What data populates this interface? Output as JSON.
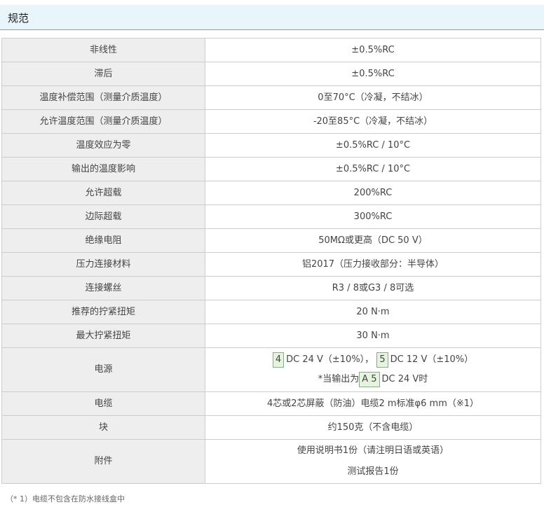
{
  "title": "规范",
  "rows": [
    {
      "label": "非线性",
      "value": "±0.5%RC"
    },
    {
      "label": "滞后",
      "value": "±0.5%RC"
    },
    {
      "label": "温度补偿范围（测量介质温度）",
      "value": "0至70°C（冷凝，不结冰）"
    },
    {
      "label": "允许温度范围（测量介质温度）",
      "value": "-20至85°C（冷凝，不结冰）"
    },
    {
      "label": "温度效应为零",
      "value": "±0.5%RC / 10°C"
    },
    {
      "label": "输出的温度影响",
      "value": "±0.5%RC / 10°C"
    },
    {
      "label": "允许超载",
      "value": "200%RC"
    },
    {
      "label": "边际超载",
      "value": "300%RC"
    },
    {
      "label": "绝缘电阻",
      "value": "50MΩ或更高（DC 50 V）"
    },
    {
      "label": "压力连接材料",
      "value": "铝2017（压力接收部分：半导体）"
    },
    {
      "label": "连接螺丝",
      "value": "R3 / 8或G3 / 8可选"
    },
    {
      "label": "推荐的拧紧扭矩",
      "value": "20 N·m"
    },
    {
      "label": "最大拧紧扭矩",
      "value": "30 N·m"
    }
  ],
  "power": {
    "label": "电源",
    "code1": "4",
    "text1": "DC 24 V（±10%），",
    "code2": "5",
    "text2": "DC 12 V（±10%）",
    "prefix3": "*当输出为",
    "code3": "A 5",
    "text3": "DC 24 V时"
  },
  "cable": {
    "label": "电缆",
    "value": "4芯或2芯屏蔽（防油）电缆2 m标准φ6 mm（※1）"
  },
  "weight": {
    "label": "块",
    "value": "约150克（不含电缆）"
  },
  "accessories": {
    "label": "附件",
    "line1": "使用说明书1份（请注明日语或英语）",
    "line2": "测试报告1份"
  },
  "footnote": "（* 1）电缆不包含在防水接线盒中"
}
